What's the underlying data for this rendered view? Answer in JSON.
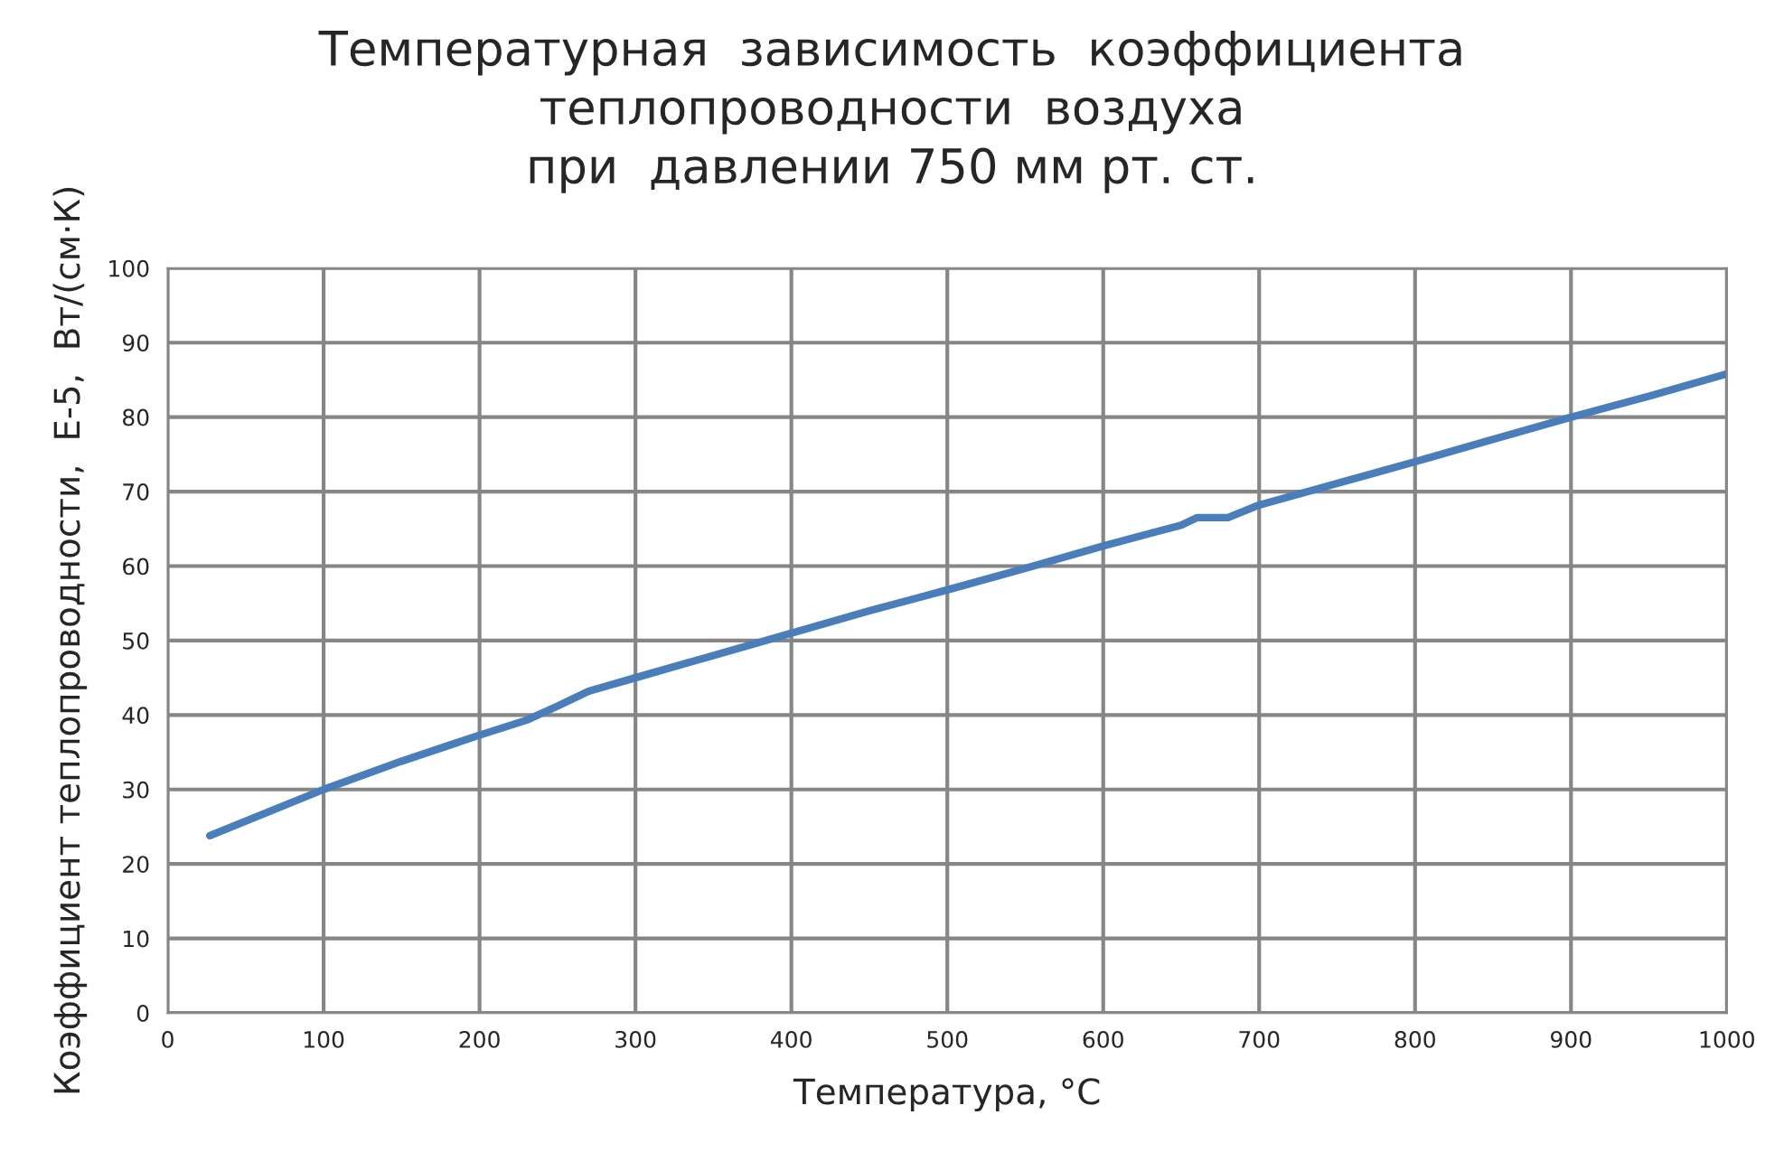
{
  "chart_data": {
    "type": "line",
    "title": "Температурная  зависимость  коэффициента\nтеплопроводности  воздуха\nпри  давлении 750 мм рт. ст.",
    "xlabel": "Температура, °C",
    "ylabel": "Коэффициент теплопроводности,  E-5,  Вт/(см·К)",
    "x": [
      27,
      100,
      150,
      200,
      230,
      250,
      270,
      300,
      350,
      400,
      450,
      500,
      550,
      600,
      650,
      660,
      680,
      700,
      750,
      800,
      850,
      900,
      950,
      1000
    ],
    "series": [
      {
        "color": "#4a7ebb",
        "values": [
          23.8,
          30,
          33.8,
          37.3,
          39.3,
          41.2,
          43.2,
          45,
          48,
          51,
          54,
          56.8,
          59.7,
          62.7,
          65.5,
          66.5,
          66.5,
          68.2,
          71.1,
          74,
          77,
          80,
          82.8,
          85.8
        ]
      }
    ],
    "xlim": [
      0,
      1000
    ],
    "ylim": [
      0,
      100
    ],
    "xticks": [
      0,
      100,
      200,
      300,
      400,
      500,
      600,
      700,
      800,
      900,
      1000
    ],
    "yticks": [
      0,
      10,
      20,
      30,
      40,
      50,
      60,
      70,
      80,
      90,
      100
    ],
    "grid": true,
    "legend": false,
    "marker": "none",
    "line_style": "solid"
  }
}
